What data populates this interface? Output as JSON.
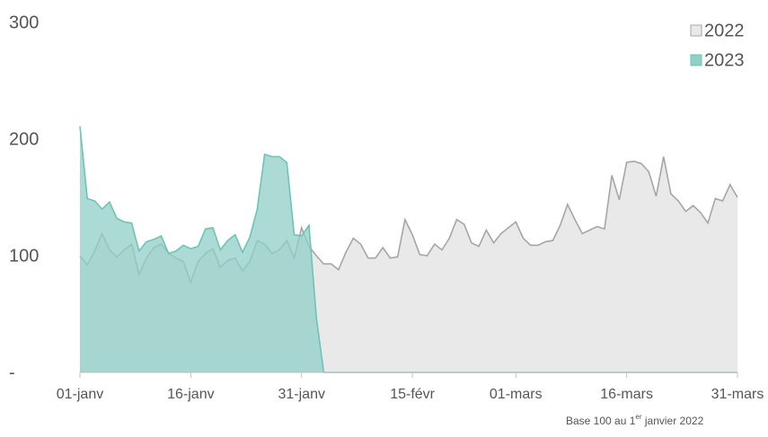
{
  "chart_data": {
    "type": "area",
    "categories": [
      "01-janv",
      null,
      null,
      null,
      null,
      null,
      null,
      null,
      null,
      null,
      null,
      null,
      null,
      null,
      null,
      "16-janv",
      null,
      null,
      null,
      null,
      null,
      null,
      null,
      null,
      null,
      null,
      null,
      null,
      null,
      null,
      "31-janv",
      null,
      null,
      null,
      null,
      null,
      null,
      null,
      null,
      null,
      null,
      null,
      null,
      null,
      null,
      "15-févr",
      null,
      null,
      null,
      null,
      null,
      null,
      null,
      null,
      null,
      null,
      null,
      null,
      null,
      "01-mars",
      null,
      null,
      null,
      null,
      null,
      null,
      null,
      null,
      null,
      null,
      null,
      null,
      null,
      null,
      "16-mars",
      null,
      null,
      null,
      null,
      null,
      null,
      null,
      null,
      null,
      null,
      null,
      null,
      null,
      null,
      "31-mars"
    ],
    "series": [
      {
        "name": "2022",
        "color": "#a6a6a6",
        "fill": "#e9e9e9",
        "values": [
          100,
          92,
          104,
          119,
          105,
          99,
          105,
          110,
          84,
          98,
          107,
          110,
          102,
          98,
          95,
          77,
          95,
          102,
          106,
          90,
          96,
          98,
          87,
          95,
          113,
          110,
          102,
          105,
          113,
          98,
          124,
          108,
          100,
          93,
          93,
          88,
          103,
          115,
          110,
          98,
          98,
          107,
          98,
          99,
          131,
          118,
          101,
          100,
          110,
          105,
          115,
          131,
          127,
          111,
          108,
          122,
          111,
          119,
          124,
          129,
          115,
          109,
          109,
          112,
          113,
          126,
          144,
          131,
          119,
          122,
          125,
          123,
          169,
          148,
          180,
          181,
          179,
          172,
          151,
          185,
          153,
          147,
          138,
          143,
          137,
          128,
          149,
          147,
          161,
          150
        ]
      },
      {
        "name": "2023",
        "color": "#6cc4b8",
        "fill": "#8fcfc6",
        "values": [
          211,
          149,
          147,
          140,
          146,
          132,
          129,
          128,
          104,
          112,
          114,
          117,
          102,
          104,
          109,
          106,
          108,
          123,
          124,
          105,
          113,
          118,
          103,
          116,
          140,
          187,
          185,
          185,
          180,
          118,
          117,
          126,
          47,
          0,
          0,
          0,
          0,
          0,
          0,
          0,
          0,
          0,
          0,
          0,
          0,
          0,
          0,
          0,
          0,
          0,
          0,
          0,
          0,
          0,
          0,
          0,
          0,
          0,
          0,
          0,
          0,
          0,
          0,
          0,
          0,
          0,
          0,
          0,
          0,
          0,
          0,
          0,
          0,
          0,
          0,
          0,
          0,
          0,
          0,
          0,
          0,
          0,
          0,
          0,
          0,
          0,
          0,
          0,
          0,
          0
        ]
      }
    ],
    "ylim": [
      0,
      300
    ],
    "yticks": [
      {
        "value": 0,
        "label": "-"
      },
      100,
      200,
      300
    ],
    "legend": "upper right",
    "note": [
      "Base 100 au 1",
      "er",
      " janvier 2022"
    ]
  }
}
